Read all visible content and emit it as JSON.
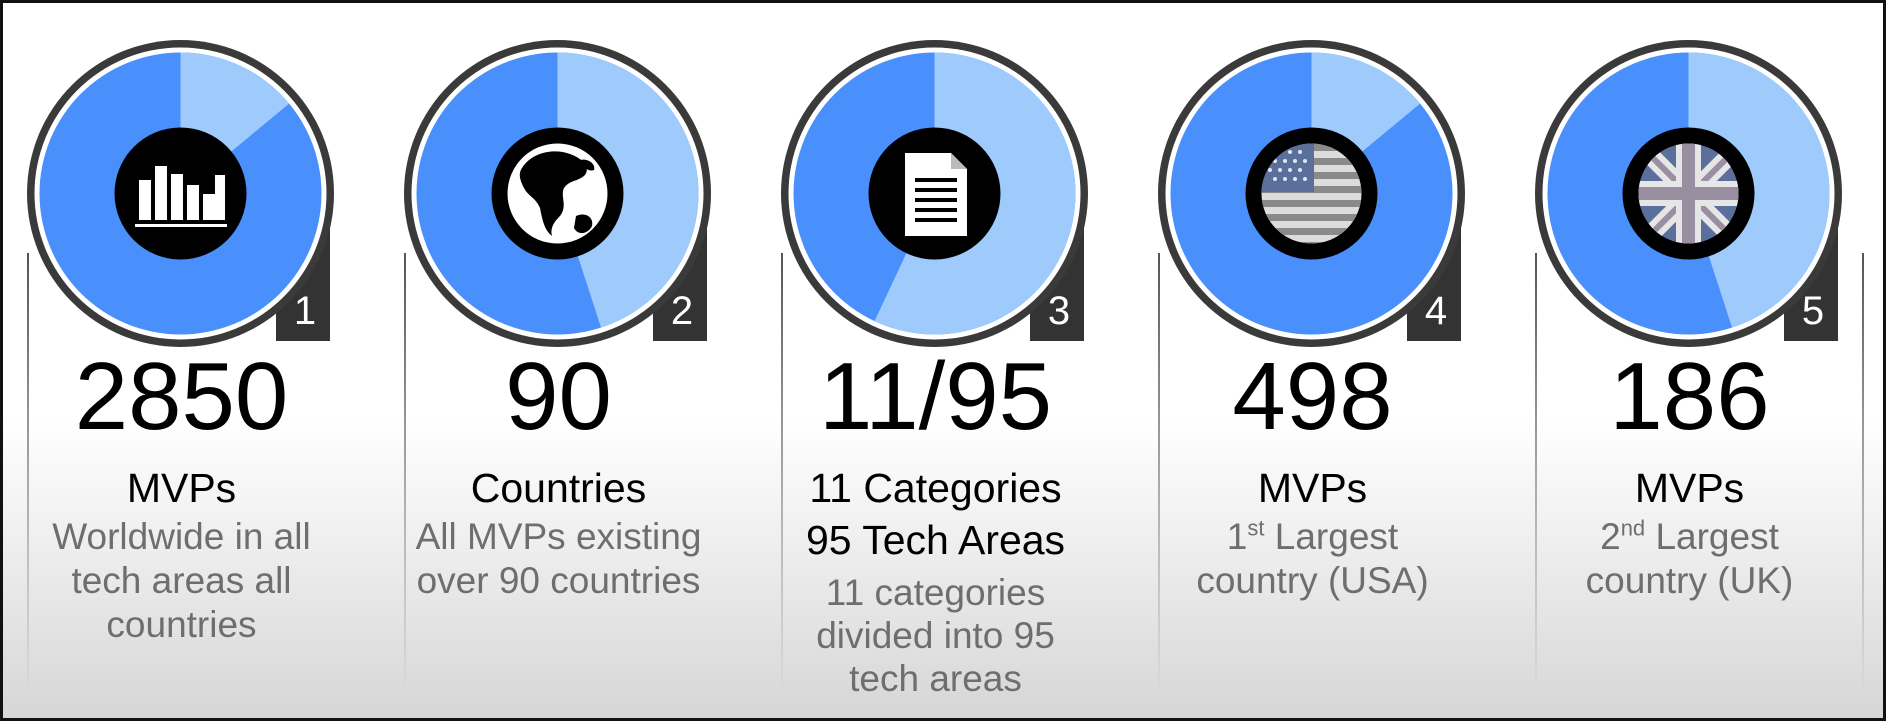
{
  "colors": {
    "dark_blue": "#4a90fc",
    "light_blue": "#9ecbfb",
    "ring_dark": "#3a3a3a",
    "badge_bg": "#333333",
    "text_grey": "#6e6e6e"
  },
  "cards": [
    {
      "number": "1",
      "value": "2850",
      "label": "MVPs",
      "description_lines": [
        "Worldwide in all",
        "tech areas all",
        "countries"
      ],
      "icon": "bar-chart-icon",
      "light_fraction": 0.14
    },
    {
      "number": "2",
      "value": "90",
      "label": "Countries",
      "description_lines": [
        "All MVPs existing",
        "over 90 countries"
      ],
      "icon": "globe-icon",
      "light_fraction": 0.45
    },
    {
      "number": "3",
      "value": "11/95",
      "label": "11 Categories",
      "label2": "95 Tech Areas",
      "description_lines": [
        "11 categories",
        "divided into 95",
        "tech areas"
      ],
      "icon": "document-icon",
      "light_fraction": 0.57
    },
    {
      "number": "4",
      "value": "498",
      "label": "MVPs",
      "description": {
        "pre": "1",
        "sup": "st",
        "post": " Largest",
        "line2": "country (USA)"
      },
      "icon": "usa-flag-icon",
      "light_fraction": 0.14
    },
    {
      "number": "5",
      "value": "186",
      "label": "MVPs",
      "description": {
        "pre": "2",
        "sup": "nd",
        "post": " Largest",
        "line2": "country (UK)"
      },
      "icon": "uk-flag-icon",
      "light_fraction": 0.45
    }
  ]
}
